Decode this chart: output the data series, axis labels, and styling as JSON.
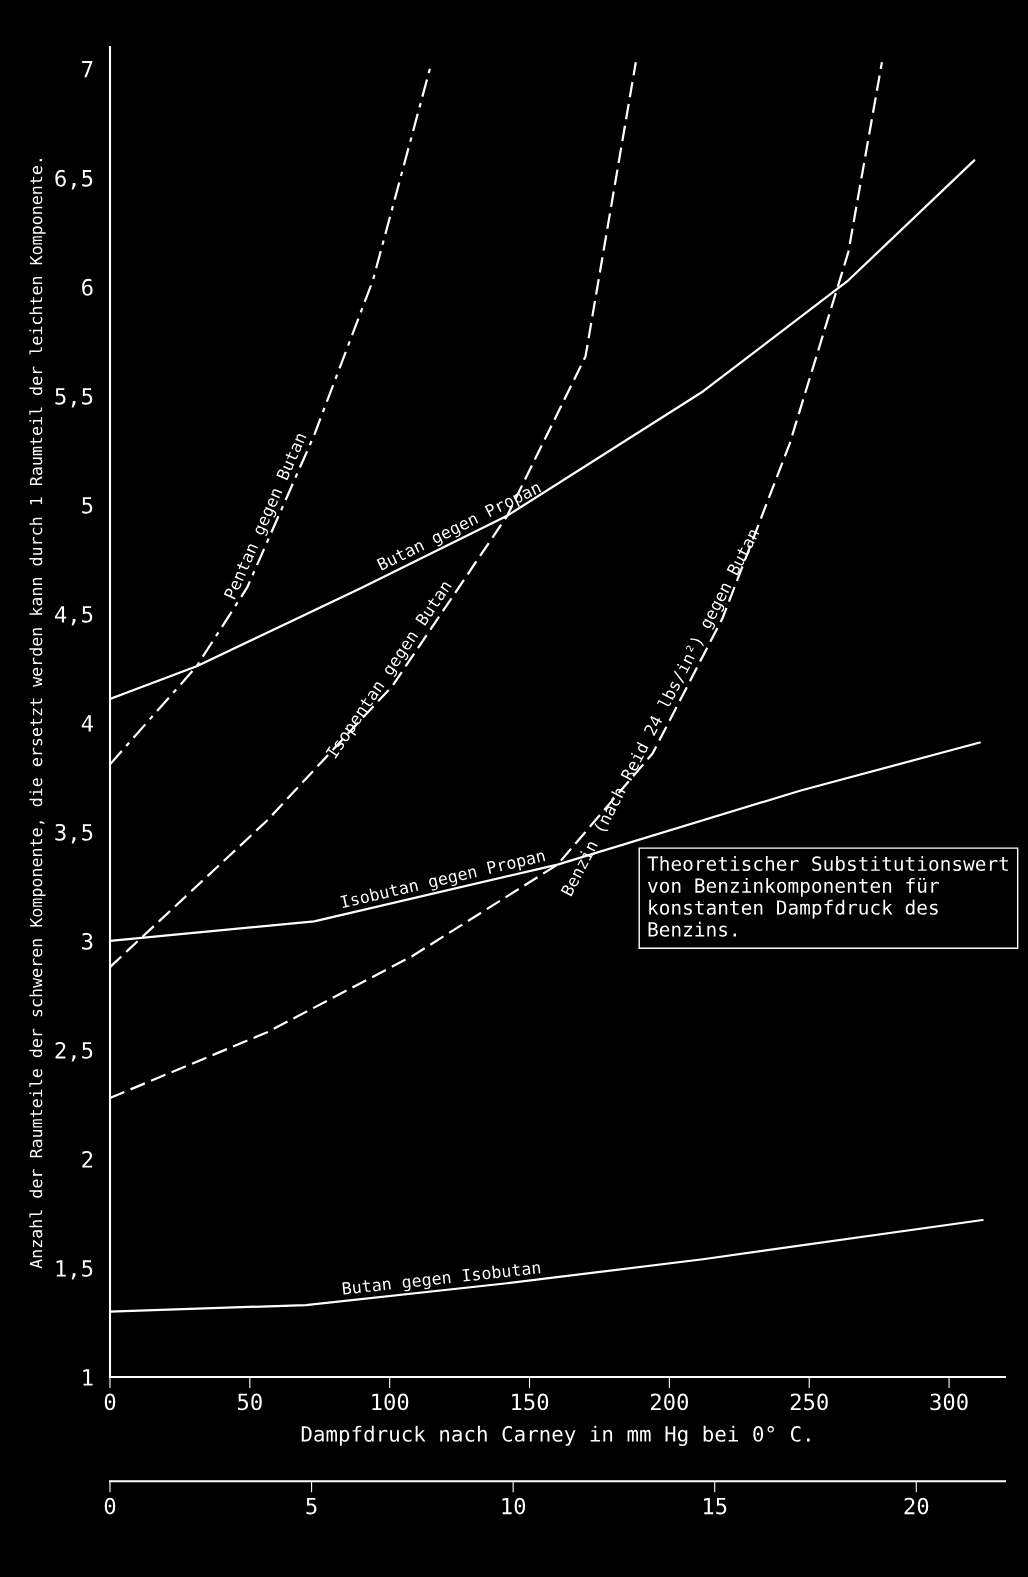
{
  "chart_data": {
    "type": "line",
    "xlabel": "Dampfdruck nach Carney in mm Hg bei 0° C.",
    "ylabel": "Anzahl der Raumteile der schweren Komponente, die ersetzt werden kann durch 1 Raumteil der leichten Komponente.",
    "xlim": [
      0,
      320
    ],
    "xticks": [
      0,
      50,
      100,
      150,
      200,
      250,
      300
    ],
    "x2lim": [
      0,
      22.2
    ],
    "x2ticks": [
      0,
      5,
      10,
      15,
      20
    ],
    "ylim": [
      1,
      7.1
    ],
    "yticks": [
      1,
      {
        "value": 1.5,
        "label": "1,5"
      },
      2,
      {
        "value": 2.5,
        "label": "2,5"
      },
      3,
      {
        "value": 3.5,
        "label": "3,5"
      },
      4,
      {
        "value": 4.5,
        "label": "4,5"
      },
      5,
      {
        "value": 5.5,
        "label": "5,5"
      },
      6,
      {
        "value": 6.5,
        "label": "6,5"
      },
      7
    ],
    "grid": false,
    "legend": false,
    "marker": "none",
    "annotations": [
      "Theoretischer Substitutionswert von Benzinkomponenten für konstanten Dampfdruck des Benzins."
    ],
    "series": [
      {
        "name": "Butan gegen Isobutan",
        "color": "#ffffff",
        "line_style": "solid",
        "x": [
          0,
          70,
          142,
          212,
          312
        ],
        "values": [
          1.3,
          1.33,
          1.43,
          1.54,
          1.72
        ]
      },
      {
        "name": "Isobutan gegen Propan",
        "color": "#ffffff",
        "line_style": "solid",
        "x": [
          0,
          73,
          160,
          247,
          311
        ],
        "values": [
          3.0,
          3.09,
          3.35,
          3.69,
          3.91
        ]
      },
      {
        "name": "Butan gegen Propan",
        "color": "#ffffff",
        "line_style": "solid",
        "x": [
          0,
          31,
          90,
          142,
          212,
          264,
          309
        ],
        "values": [
          4.11,
          4.26,
          4.62,
          4.95,
          5.52,
          6.03,
          6.58
        ]
      },
      {
        "name": "Pentan gegen Butan",
        "color": "#ffffff",
        "line_style": "dotted",
        "x": [
          0,
          31,
          49,
          73,
          94,
          115
        ],
        "values": [
          3.81,
          4.26,
          4.62,
          5.32,
          6.03,
          7.03
        ]
      },
      {
        "name": "Isopentan gegen Butan",
        "color": "#ffffff",
        "line_style": "dashed",
        "x": [
          0,
          10,
          56,
          101,
          142,
          170,
          188
        ],
        "values": [
          2.88,
          3.0,
          3.55,
          4.17,
          4.95,
          5.68,
          7.03
        ]
      },
      {
        "name": "Benzin (nach Reid 24 lbs/in²) gegen Butan",
        "color": "#ffffff",
        "line_style": "dashed",
        "x": [
          0,
          56,
          108,
          160,
          194,
          219,
          243,
          264,
          276
        ],
        "values": [
          2.28,
          2.58,
          2.93,
          3.35,
          3.86,
          4.48,
          5.28,
          6.16,
          7.03
        ]
      }
    ]
  }
}
